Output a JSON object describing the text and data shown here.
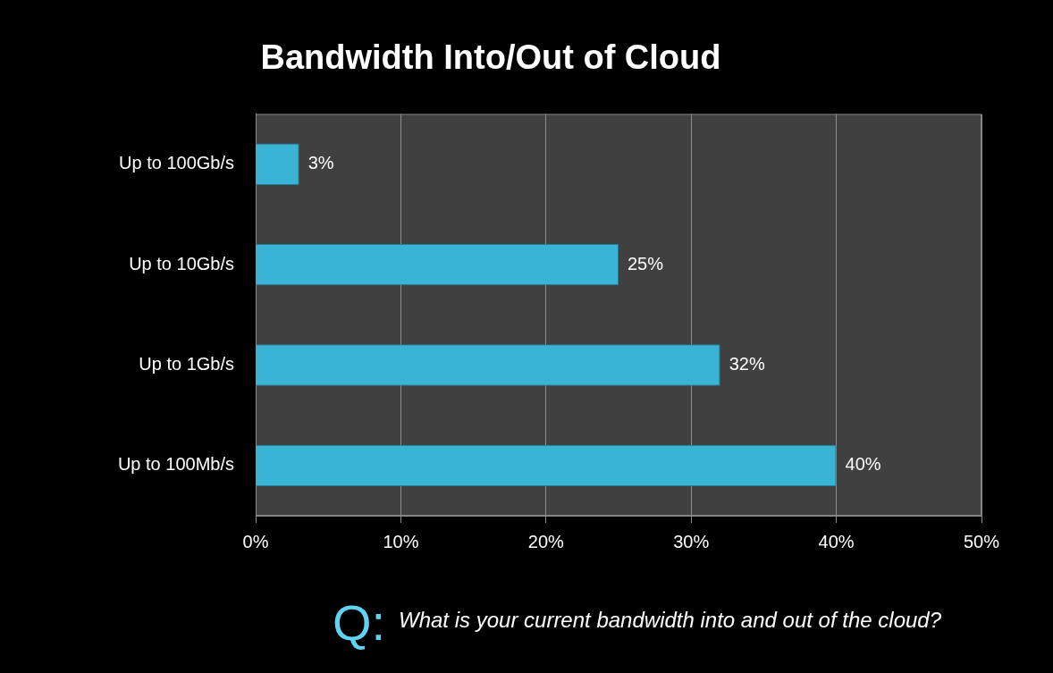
{
  "chart_data": {
    "type": "bar",
    "orientation": "horizontal",
    "title": "Bandwidth Into/Out of Cloud",
    "categories": [
      "Up to 100Gb/s",
      "Up to 10Gb/s",
      "Up to 1Gb/s",
      "Up to 100Mb/s"
    ],
    "values": [
      3,
      25,
      32,
      40
    ],
    "color": "#3ab4d4",
    "value_labels": [
      "3%",
      "25%",
      "32%",
      "40%"
    ],
    "xlim": [
      0,
      50
    ],
    "xticks": [
      {
        "value": 0,
        "label": "0%"
      },
      {
        "value": 10,
        "label": "10%"
      },
      {
        "value": 20,
        "label": "20%"
      },
      {
        "value": 30,
        "label": "30%"
      },
      {
        "value": 40,
        "label": "40%"
      },
      {
        "value": 50,
        "label": "50%"
      }
    ],
    "grid": "x",
    "legend": false,
    "annotations": [
      "Q:",
      "What is your current bandwidth into and out of the cloud?"
    ]
  }
}
